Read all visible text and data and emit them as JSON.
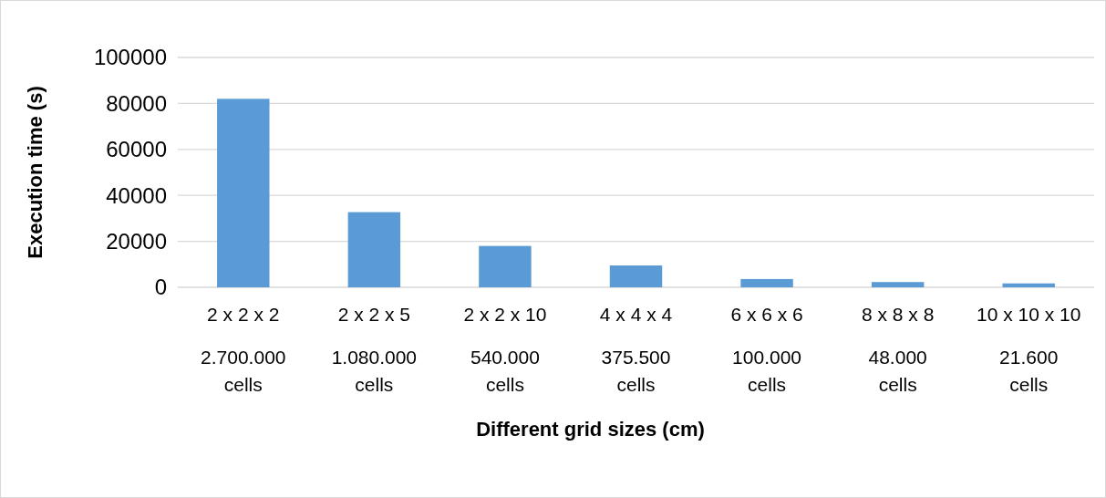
{
  "chart_data": {
    "type": "bar",
    "xlabel": "Different grid sizes (cm)",
    "ylabel": "Execution time (s)",
    "categories": [
      "2 x 2 x 2",
      "2 x 2 x 5",
      "2 x 2 x 10",
      "4 x 4 x 4",
      "6 x 6 x 6",
      "8 x 8 x 8",
      "10 x 10 x 10"
    ],
    "values": [
      82000,
      32700,
      18000,
      9500,
      3600,
      2300,
      1700
    ],
    "color": "#5b9bd5",
    "ylim": [
      0,
      100000
    ],
    "yticks": [
      0,
      20000,
      40000,
      60000,
      80000,
      100000
    ],
    "grid": "y",
    "annotations": [
      "2.700.000 cells",
      "1.080.000 cells",
      "540.000 cells",
      "375.500 cells",
      "100.000 cells",
      "48.000 cells",
      "21.600 cells"
    ]
  }
}
